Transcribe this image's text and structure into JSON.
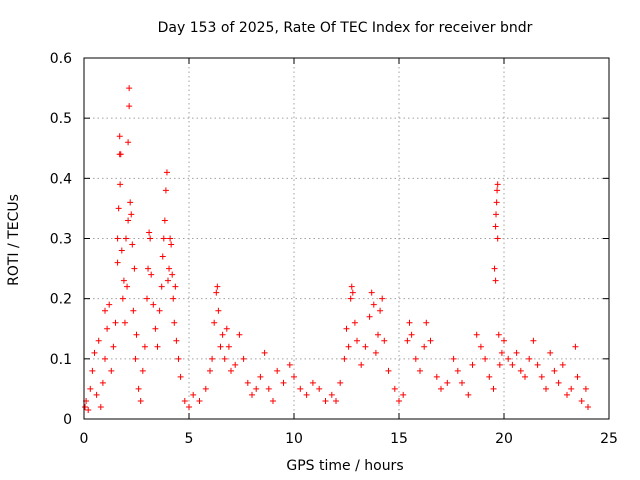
{
  "chart_data": {
    "type": "scatter",
    "title": "Day 153 of 2025, Rate Of TEC Index for receiver bndr",
    "xlabel": "GPS time / hours",
    "ylabel": "ROTI / TECUs",
    "xlim": [
      0,
      25
    ],
    "ylim": [
      0,
      0.6
    ],
    "grid": true,
    "marker": "+",
    "colors": {
      "series": "#ff0000",
      "grid": "#a0a0a0"
    },
    "x_ticks": [
      {
        "value": 0,
        "label": "0"
      },
      {
        "value": 5,
        "label": "5"
      },
      {
        "value": 10,
        "label": "10"
      },
      {
        "value": 15,
        "label": "15"
      },
      {
        "value": 20,
        "label": "20"
      },
      {
        "value": 25,
        "label": "25"
      }
    ],
    "y_ticks": [
      {
        "value": 0,
        "label": "0"
      },
      {
        "value": 0.1,
        "label": "0.1"
      },
      {
        "value": 0.2,
        "label": "0.2"
      },
      {
        "value": 0.3,
        "label": "0.3"
      },
      {
        "value": 0.4,
        "label": "0.4"
      },
      {
        "value": 0.5,
        "label": "0.5"
      },
      {
        "value": 0.6,
        "label": "0.6"
      }
    ],
    "series": [
      {
        "name": "ROTI",
        "points": [
          [
            0.05,
            0.02
          ],
          [
            0.1,
            0.03
          ],
          [
            0.2,
            0.015
          ],
          [
            0.3,
            0.05
          ],
          [
            0.4,
            0.08
          ],
          [
            0.5,
            0.11
          ],
          [
            0.6,
            0.04
          ],
          [
            0.7,
            0.13
          ],
          [
            0.8,
            0.02
          ],
          [
            0.9,
            0.06
          ],
          [
            1.0,
            0.1
          ],
          [
            1.0,
            0.18
          ],
          [
            1.1,
            0.15
          ],
          [
            1.2,
            0.19
          ],
          [
            1.3,
            0.08
          ],
          [
            1.4,
            0.12
          ],
          [
            1.5,
            0.16
          ],
          [
            1.6,
            0.3
          ],
          [
            1.6,
            0.26
          ],
          [
            1.65,
            0.35
          ],
          [
            1.7,
            0.44
          ],
          [
            1.7,
            0.47
          ],
          [
            1.72,
            0.39
          ],
          [
            1.75,
            0.44
          ],
          [
            1.8,
            0.28
          ],
          [
            1.85,
            0.2
          ],
          [
            1.9,
            0.23
          ],
          [
            1.95,
            0.16
          ],
          [
            2.0,
            0.3
          ],
          [
            2.05,
            0.22
          ],
          [
            2.1,
            0.46
          ],
          [
            2.1,
            0.33
          ],
          [
            2.15,
            0.52
          ],
          [
            2.15,
            0.55
          ],
          [
            2.2,
            0.36
          ],
          [
            2.25,
            0.34
          ],
          [
            2.3,
            0.29
          ],
          [
            2.35,
            0.18
          ],
          [
            2.4,
            0.25
          ],
          [
            2.45,
            0.1
          ],
          [
            2.5,
            0.14
          ],
          [
            2.6,
            0.05
          ],
          [
            2.7,
            0.03
          ],
          [
            2.8,
            0.08
          ],
          [
            2.9,
            0.12
          ],
          [
            3.0,
            0.2
          ],
          [
            3.05,
            0.25
          ],
          [
            3.1,
            0.31
          ],
          [
            3.15,
            0.3
          ],
          [
            3.2,
            0.24
          ],
          [
            3.3,
            0.19
          ],
          [
            3.4,
            0.15
          ],
          [
            3.5,
            0.12
          ],
          [
            3.6,
            0.18
          ],
          [
            3.7,
            0.22
          ],
          [
            3.75,
            0.27
          ],
          [
            3.8,
            0.3
          ],
          [
            3.85,
            0.33
          ],
          [
            3.9,
            0.38
          ],
          [
            3.95,
            0.41
          ],
          [
            4.0,
            0.23
          ],
          [
            4.05,
            0.25
          ],
          [
            4.1,
            0.3
          ],
          [
            4.15,
            0.29
          ],
          [
            4.2,
            0.24
          ],
          [
            4.25,
            0.2
          ],
          [
            4.3,
            0.16
          ],
          [
            4.35,
            0.22
          ],
          [
            4.4,
            0.13
          ],
          [
            4.5,
            0.1
          ],
          [
            4.6,
            0.07
          ],
          [
            4.8,
            0.03
          ],
          [
            5.0,
            0.02
          ],
          [
            5.2,
            0.04
          ],
          [
            5.5,
            0.03
          ],
          [
            5.8,
            0.05
          ],
          [
            6.0,
            0.08
          ],
          [
            6.1,
            0.1
          ],
          [
            6.2,
            0.16
          ],
          [
            6.3,
            0.21
          ],
          [
            6.35,
            0.22
          ],
          [
            6.4,
            0.18
          ],
          [
            6.5,
            0.12
          ],
          [
            6.6,
            0.14
          ],
          [
            6.7,
            0.1
          ],
          [
            6.8,
            0.15
          ],
          [
            6.9,
            0.12
          ],
          [
            7.0,
            0.08
          ],
          [
            7.2,
            0.09
          ],
          [
            7.4,
            0.14
          ],
          [
            7.6,
            0.1
          ],
          [
            7.8,
            0.06
          ],
          [
            8.0,
            0.04
          ],
          [
            8.2,
            0.05
          ],
          [
            8.4,
            0.07
          ],
          [
            8.6,
            0.11
          ],
          [
            8.8,
            0.05
          ],
          [
            9.0,
            0.03
          ],
          [
            9.2,
            0.08
          ],
          [
            9.5,
            0.06
          ],
          [
            9.8,
            0.09
          ],
          [
            10.0,
            0.07
          ],
          [
            10.3,
            0.05
          ],
          [
            10.6,
            0.04
          ],
          [
            10.9,
            0.06
          ],
          [
            11.2,
            0.05
          ],
          [
            11.5,
            0.03
          ],
          [
            11.8,
            0.04
          ],
          [
            12.0,
            0.03
          ],
          [
            12.2,
            0.06
          ],
          [
            12.4,
            0.1
          ],
          [
            12.5,
            0.15
          ],
          [
            12.6,
            0.12
          ],
          [
            12.7,
            0.2
          ],
          [
            12.75,
            0.22
          ],
          [
            12.8,
            0.21
          ],
          [
            12.9,
            0.16
          ],
          [
            13.0,
            0.13
          ],
          [
            13.2,
            0.09
          ],
          [
            13.4,
            0.12
          ],
          [
            13.6,
            0.17
          ],
          [
            13.7,
            0.21
          ],
          [
            13.8,
            0.19
          ],
          [
            13.9,
            0.11
          ],
          [
            14.0,
            0.14
          ],
          [
            14.1,
            0.18
          ],
          [
            14.2,
            0.2
          ],
          [
            14.3,
            0.13
          ],
          [
            14.5,
            0.08
          ],
          [
            14.8,
            0.05
          ],
          [
            15.0,
            0.03
          ],
          [
            15.2,
            0.04
          ],
          [
            15.4,
            0.13
          ],
          [
            15.5,
            0.16
          ],
          [
            15.6,
            0.14
          ],
          [
            15.8,
            0.1
          ],
          [
            16.0,
            0.08
          ],
          [
            16.2,
            0.12
          ],
          [
            16.3,
            0.16
          ],
          [
            16.5,
            0.13
          ],
          [
            16.8,
            0.07
          ],
          [
            17.0,
            0.05
          ],
          [
            17.3,
            0.06
          ],
          [
            17.6,
            0.1
          ],
          [
            17.8,
            0.08
          ],
          [
            18.0,
            0.06
          ],
          [
            18.3,
            0.04
          ],
          [
            18.5,
            0.09
          ],
          [
            18.7,
            0.14
          ],
          [
            18.9,
            0.12
          ],
          [
            19.1,
            0.1
          ],
          [
            19.3,
            0.07
          ],
          [
            19.5,
            0.05
          ],
          [
            19.55,
            0.25
          ],
          [
            19.6,
            0.23
          ],
          [
            19.6,
            0.32
          ],
          [
            19.62,
            0.34
          ],
          [
            19.65,
            0.36
          ],
          [
            19.67,
            0.38
          ],
          [
            19.7,
            0.39
          ],
          [
            19.7,
            0.3
          ],
          [
            19.75,
            0.14
          ],
          [
            19.8,
            0.09
          ],
          [
            19.9,
            0.11
          ],
          [
            20.0,
            0.13
          ],
          [
            20.2,
            0.1
          ],
          [
            20.4,
            0.09
          ],
          [
            20.6,
            0.11
          ],
          [
            20.8,
            0.08
          ],
          [
            21.0,
            0.07
          ],
          [
            21.2,
            0.1
          ],
          [
            21.4,
            0.13
          ],
          [
            21.6,
            0.09
          ],
          [
            21.8,
            0.07
          ],
          [
            22.0,
            0.05
          ],
          [
            22.2,
            0.11
          ],
          [
            22.4,
            0.08
          ],
          [
            22.6,
            0.06
          ],
          [
            22.8,
            0.09
          ],
          [
            23.0,
            0.04
          ],
          [
            23.2,
            0.05
          ],
          [
            23.4,
            0.12
          ],
          [
            23.5,
            0.07
          ],
          [
            23.7,
            0.03
          ],
          [
            23.9,
            0.05
          ],
          [
            24.0,
            0.02
          ]
        ]
      }
    ]
  }
}
